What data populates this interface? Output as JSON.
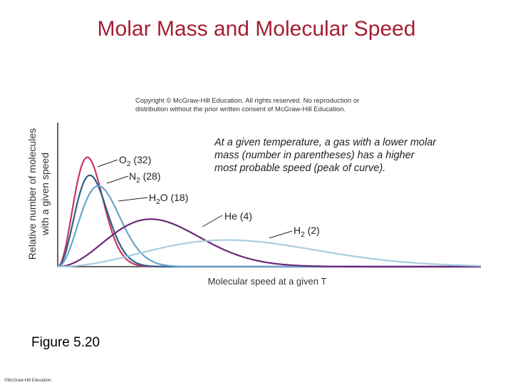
{
  "slide": {
    "title": "Molar Mass and Molecular Speed",
    "copyright_line1": "Copyright © McGraw-Hill Education.  All rights reserved. No reproduction or",
    "copyright_line2": "distribution without the prior written consent of McGraw-Hill Education.",
    "figure_caption": "Figure 5.20",
    "footer": "©McGraw-Hill Education."
  },
  "chart_data": {
    "type": "line",
    "title": "",
    "xlabel": "Molecular speed at a given T",
    "ylabel_line1": "Relative number of molecules",
    "ylabel_line2": "with a given speed",
    "xlim": [
      0,
      1
    ],
    "ylim": [
      0,
      1
    ],
    "annotation": [
      "At a given temperature, a gas with a lower molar",
      "mass (number in parentheses) has a higher",
      "most probable speed (peak of curve)."
    ],
    "series": [
      {
        "name": "O2",
        "label_main": "O",
        "label_sub": "2",
        "label_rest": " (32)",
        "color": "#c8365e",
        "peak_x": 0.07,
        "peak_y": 0.76
      },
      {
        "name": "N2",
        "label_main": "N",
        "label_sub": "2",
        "label_rest": " (28)",
        "color": "#2b5f8a",
        "peak_x": 0.076,
        "peak_y": 0.635
      },
      {
        "name": "H2O",
        "label_main": "H",
        "label_sub": "2",
        "label_rest": "O (18)",
        "color": "#6aa4cc",
        "peak_x": 0.096,
        "peak_y": 0.56
      },
      {
        "name": "He",
        "label_main": "He (4)",
        "label_sub": "",
        "label_rest": "",
        "color": "#6a2a7a",
        "peak_x": 0.22,
        "peak_y": 0.33
      },
      {
        "name": "H2",
        "label_main": "H",
        "label_sub": "2",
        "label_rest": " (2)",
        "color": "#a8cde0",
        "peak_x": 0.4,
        "peak_y": 0.185
      }
    ]
  }
}
